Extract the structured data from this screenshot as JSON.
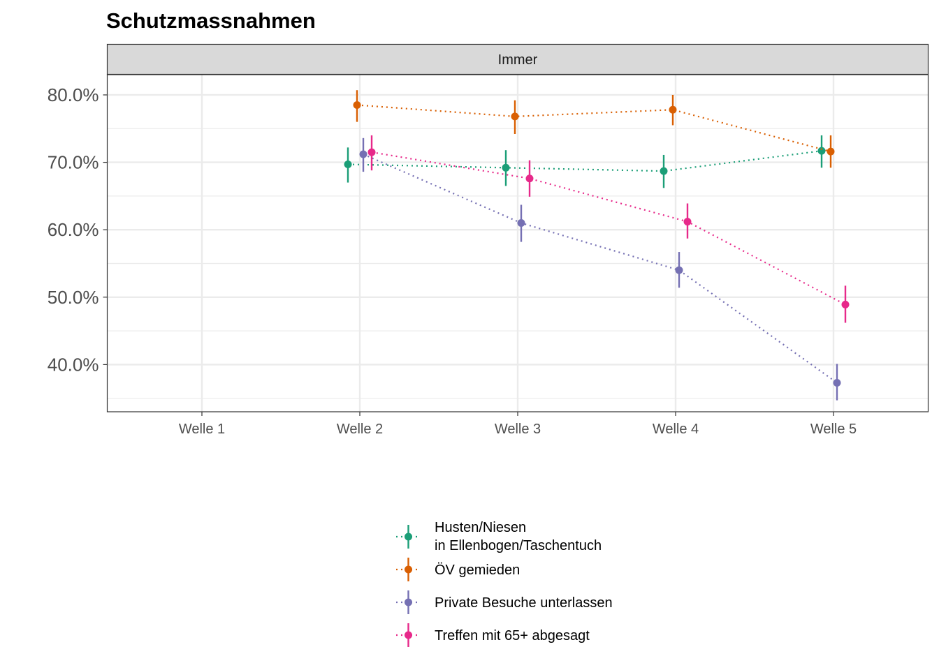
{
  "chart_data": {
    "type": "line",
    "title": "Schutzmassnahmen",
    "facet_label": "Immer",
    "categories": [
      "Welle 1",
      "Welle 2",
      "Welle 3",
      "Welle 4",
      "Welle 5"
    ],
    "y_ticks": [
      {
        "value": 0.4,
        "label": "40.0%"
      },
      {
        "value": 0.5,
        "label": "50.0%"
      },
      {
        "value": 0.6,
        "label": "60.0%"
      },
      {
        "value": 0.7,
        "label": "70.0%"
      },
      {
        "value": 0.8,
        "label": "80.0%"
      }
    ],
    "ylim": [
      0.33,
      0.83
    ],
    "grid": true,
    "error_bars": true,
    "legend_position": "bottom",
    "series": [
      {
        "name": "Husten/Niesen\nin Ellenbogen/Taschentuch",
        "color": "#1b9e77",
        "values": [
          null,
          0.697,
          0.692,
          0.687,
          0.717
        ],
        "lower": [
          null,
          0.67,
          0.665,
          0.662,
          0.692
        ],
        "upper": [
          null,
          0.722,
          0.718,
          0.711,
          0.74
        ]
      },
      {
        "name": "ÖV gemieden",
        "color": "#d95f02",
        "values": [
          null,
          0.785,
          0.768,
          0.778,
          0.716
        ],
        "lower": [
          null,
          0.76,
          0.742,
          0.755,
          0.692
        ],
        "upper": [
          null,
          0.807,
          0.792,
          0.8,
          0.74
        ]
      },
      {
        "name": "Private Besuche unterlassen",
        "color": "#7570b3",
        "values": [
          null,
          0.712,
          0.61,
          0.54,
          0.373
        ],
        "lower": [
          null,
          0.686,
          0.582,
          0.514,
          0.347
        ],
        "upper": [
          null,
          0.736,
          0.637,
          0.567,
          0.401
        ]
      },
      {
        "name": "Treffen mit 65+ abgesagt",
        "color": "#e7298a",
        "values": [
          null,
          0.715,
          0.676,
          0.612,
          0.489
        ],
        "lower": [
          null,
          0.688,
          0.649,
          0.587,
          0.462
        ],
        "upper": [
          null,
          0.74,
          0.703,
          0.639,
          0.517
        ]
      }
    ]
  }
}
